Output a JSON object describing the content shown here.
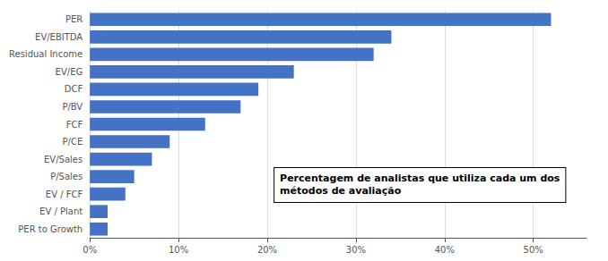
{
  "chart_data": {
    "type": "bar",
    "orientation": "horizontal",
    "categories": [
      "PER",
      "EV/EBITDA",
      "Residual Income",
      "EV/EG",
      "DCF",
      "P/BV",
      "FCF",
      "P/CE",
      "EV/Sales",
      "P/Sales",
      "EV / FCF",
      "EV / Plant",
      "PER to Growth"
    ],
    "values": [
      52,
      34,
      32,
      23,
      19,
      17,
      13,
      9,
      7,
      5,
      4,
      2,
      2
    ],
    "color": "#4472C4",
    "xlim": [
      0,
      56
    ],
    "xticks": [
      {
        "value": 0,
        "label": "0%"
      },
      {
        "value": 10,
        "label": "10%"
      },
      {
        "value": 20,
        "label": "20%"
      },
      {
        "value": 30,
        "label": "30%"
      },
      {
        "value": 40,
        "label": "40%"
      },
      {
        "value": 50,
        "label": "50%"
      }
    ],
    "grid": true,
    "annotation": "Percentagem de analistas que utiliza cada um dos\nmétodos de avaliação"
  }
}
